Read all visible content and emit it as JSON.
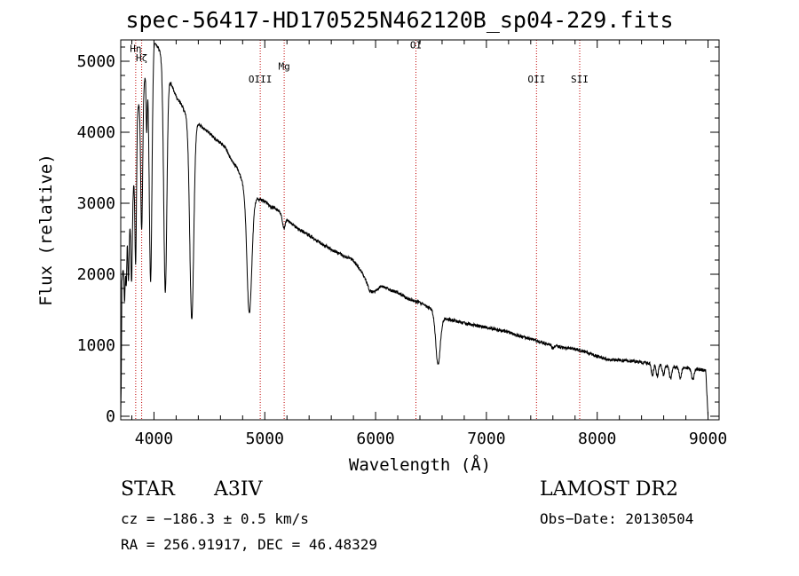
{
  "chart_data": {
    "type": "line",
    "title": "spec-56417-HD170525N462120B_sp04-229.fits",
    "xlabel": "Wavelength (Å)",
    "ylabel": "Flux (relative)",
    "xlim": [
      3700,
      9100
    ],
    "ylim": [
      -50,
      5300
    ],
    "x_ticks": [
      4000,
      5000,
      6000,
      7000,
      8000,
      9000
    ],
    "y_ticks": [
      0,
      1000,
      2000,
      3000,
      4000,
      5000
    ],
    "grid": false,
    "line_markers": [
      {
        "label": "Hζ",
        "x": 3889,
        "label_y": 5000
      },
      {
        "label": "Hη",
        "x": 3835,
        "label_y": 5130
      },
      {
        "label": "OIII",
        "x": 4959,
        "label_y": 4700
      },
      {
        "label": "Mg",
        "x": 5175,
        "label_y": 4880
      },
      {
        "label": "OI",
        "x": 6364,
        "label_y": 5180
      },
      {
        "label": "OII",
        "x": 7452,
        "label_y": 4700
      },
      {
        "label": "SII",
        "x": 7842,
        "label_y": 4700
      }
    ],
    "continuum": [
      [
        3700,
        0
      ],
      [
        3705,
        500
      ],
      [
        3710,
        1900
      ],
      [
        3730,
        2200
      ],
      [
        3760,
        2700
      ],
      [
        3800,
        2800
      ],
      [
        3850,
        4300
      ],
      [
        3900,
        4700
      ],
      [
        3950,
        4900
      ],
      [
        3980,
        5200
      ],
      [
        4000,
        5300
      ],
      [
        4050,
        5150
      ],
      [
        4100,
        4900
      ],
      [
        4150,
        4700
      ],
      [
        4200,
        4500
      ],
      [
        4250,
        4380
      ],
      [
        4300,
        4220
      ],
      [
        4350,
        4220
      ],
      [
        4400,
        4120
      ],
      [
        4450,
        4050
      ],
      [
        4500,
        3990
      ],
      [
        4550,
        3910
      ],
      [
        4600,
        3850
      ],
      [
        4650,
        3770
      ],
      [
        4700,
        3600
      ],
      [
        4750,
        3500
      ],
      [
        4800,
        3300
      ],
      [
        4830,
        3200
      ],
      [
        4850,
        3050
      ],
      [
        4900,
        3080
      ],
      [
        4950,
        3050
      ],
      [
        5000,
        3030
      ],
      [
        5050,
        2950
      ],
      [
        5100,
        2930
      ],
      [
        5150,
        2860
      ],
      [
        5200,
        2780
      ],
      [
        5250,
        2700
      ],
      [
        5300,
        2640
      ],
      [
        5400,
        2550
      ],
      [
        5500,
        2450
      ],
      [
        5600,
        2350
      ],
      [
        5700,
        2270
      ],
      [
        5800,
        2200
      ],
      [
        5900,
        1970
      ],
      [
        5950,
        1750
      ],
      [
        6000,
        1760
      ],
      [
        6050,
        1830
      ],
      [
        6100,
        1800
      ],
      [
        6200,
        1740
      ],
      [
        6300,
        1650
      ],
      [
        6400,
        1600
      ],
      [
        6500,
        1510
      ],
      [
        6600,
        1380
      ],
      [
        6700,
        1350
      ],
      [
        6800,
        1310
      ],
      [
        6900,
        1280
      ],
      [
        7000,
        1250
      ],
      [
        7100,
        1220
      ],
      [
        7200,
        1180
      ],
      [
        7300,
        1130
      ],
      [
        7400,
        1090
      ],
      [
        7500,
        1040
      ],
      [
        7600,
        1000
      ],
      [
        7700,
        960
      ],
      [
        7800,
        950
      ],
      [
        7900,
        900
      ],
      [
        8000,
        840
      ],
      [
        8100,
        800
      ],
      [
        8200,
        790
      ],
      [
        8300,
        780
      ],
      [
        8400,
        760
      ],
      [
        8500,
        740
      ],
      [
        8600,
        720
      ],
      [
        8700,
        690
      ],
      [
        8800,
        680
      ],
      [
        8900,
        670
      ],
      [
        8980,
        640
      ],
      [
        9000,
        0
      ]
    ],
    "absorption_lines": [
      {
        "x": 3735,
        "depth": 650,
        "width": 5
      },
      {
        "x": 3750,
        "depth": 700,
        "width": 5
      },
      {
        "x": 3770,
        "depth": 800,
        "width": 6
      },
      {
        "x": 3798,
        "depth": 900,
        "width": 6
      },
      {
        "x": 3835,
        "depth": 1700,
        "width": 7
      },
      {
        "x": 3889,
        "depth": 2000,
        "width": 9
      },
      {
        "x": 3934,
        "depth": 800,
        "width": 5
      },
      {
        "x": 3970,
        "depth": 3200,
        "width": 12
      },
      {
        "x": 4102,
        "depth": 3150,
        "width": 14
      },
      {
        "x": 4341,
        "depth": 2850,
        "width": 18
      },
      {
        "x": 4861,
        "depth": 1600,
        "width": 22
      },
      {
        "x": 5172,
        "depth": 180,
        "width": 12
      },
      {
        "x": 6563,
        "depth": 700,
        "width": 20
      },
      {
        "x": 7600,
        "depth": 40,
        "width": 10
      },
      {
        "x": 8498,
        "depth": 160,
        "width": 10
      },
      {
        "x": 8542,
        "depth": 170,
        "width": 10
      },
      {
        "x": 8598,
        "depth": 140,
        "width": 10
      },
      {
        "x": 8662,
        "depth": 170,
        "width": 10
      },
      {
        "x": 8750,
        "depth": 150,
        "width": 10
      },
      {
        "x": 8863,
        "depth": 160,
        "width": 12
      }
    ]
  },
  "info": {
    "class_label": "STAR",
    "subclass": "A3IV",
    "survey": "LAMOST DR2",
    "cz": "cz = −186.3 ± 0.5 km/s",
    "obs_date": "Obs−Date: 20130504",
    "radec": "RA = 256.91917, DEC =  46.48329"
  }
}
